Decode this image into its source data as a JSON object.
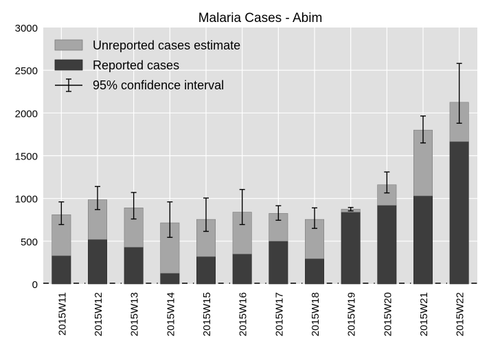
{
  "chart_data": {
    "type": "bar",
    "title": "Malaria Cases - Abim",
    "xlabel": "",
    "ylabel": "",
    "ylim": [
      0,
      3000
    ],
    "yticks": [
      0,
      500,
      1000,
      1500,
      2000,
      2500,
      3000
    ],
    "grid": true,
    "legend_position": "top-left",
    "stacked": true,
    "categories": [
      "2015W11",
      "2015W12",
      "2015W13",
      "2015W14",
      "2015W15",
      "2015W16",
      "2015W17",
      "2015W18",
      "2015W19",
      "2015W20",
      "2015W21",
      "2015W22"
    ],
    "series": [
      {
        "name": "Reported cases",
        "color": "#3d3d3d",
        "values": [
          330,
          520,
          430,
          125,
          320,
          350,
          500,
          295,
          840,
          920,
          1030,
          1665
        ]
      },
      {
        "name": "Unreported cases estimate",
        "color": "#a6a6a6",
        "values": [
          480,
          465,
          460,
          590,
          435,
          490,
          325,
          460,
          35,
          240,
          770,
          460
        ]
      }
    ],
    "totals": [
      810,
      985,
      890,
      715,
      755,
      840,
      825,
      755,
      875,
      1160,
      1800,
      2125
    ],
    "confidence_interval": {
      "name": "95% confidence interval",
      "lower": [
        695,
        870,
        760,
        545,
        615,
        695,
        745,
        650,
        855,
        1065,
        1650,
        1880
      ],
      "upper": [
        960,
        1140,
        1070,
        960,
        1005,
        1105,
        915,
        890,
        895,
        1310,
        1965,
        2580
      ]
    }
  }
}
